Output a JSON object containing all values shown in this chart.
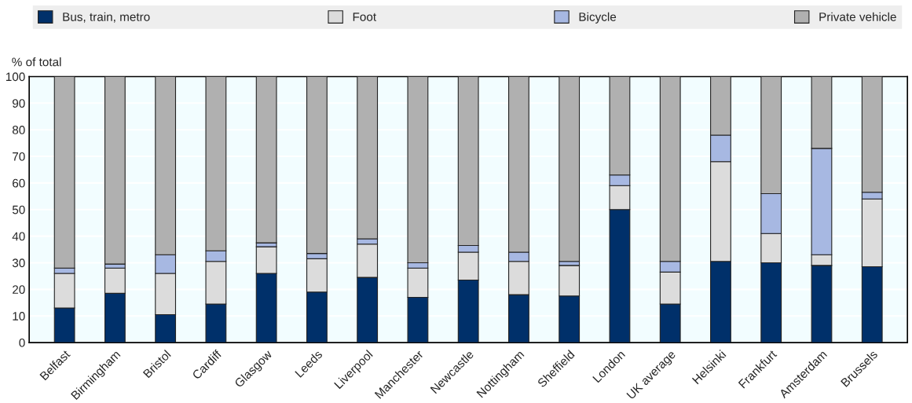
{
  "chart_data": {
    "type": "bar",
    "stacked": true,
    "ylabel": "% of total",
    "categories": [
      "Belfast",
      "Birmingham",
      "Bristol",
      "Cardiff",
      "Glasgow",
      "Leeds",
      "Liverpool",
      "Manchester",
      "Newcastle",
      "Nottingham",
      "Sheffield",
      "London",
      "UK average",
      "Helsinki",
      "Frankfurt",
      "Amsterdam",
      "Brussels"
    ],
    "series": [
      {
        "name": "Bus, train, metro",
        "color": "#00306a",
        "values": [
          13,
          18.5,
          10.5,
          14.5,
          26,
          19,
          24.5,
          17,
          23.5,
          18,
          17.5,
          50,
          14.5,
          30.5,
          30,
          29,
          28.5
        ]
      },
      {
        "name": "Foot",
        "color": "#dcdcdc",
        "values": [
          13,
          9.5,
          15.5,
          16,
          10,
          12.5,
          12.5,
          11,
          10.5,
          12.5,
          11.5,
          9,
          12,
          37.5,
          11,
          4,
          25.5
        ]
      },
      {
        "name": "Bicycle",
        "color": "#a7b8e2",
        "values": [
          2,
          1.5,
          7,
          4,
          1.5,
          2,
          2,
          2,
          2.5,
          3.5,
          1.5,
          4,
          4,
          10,
          15,
          40,
          2.5
        ]
      },
      {
        "name": "Private vehicle",
        "color": "#b0b0b0",
        "values": [
          72,
          70.5,
          67,
          65.5,
          62.5,
          66.5,
          61,
          70,
          63.5,
          66,
          69.5,
          37,
          69.5,
          22,
          44,
          27,
          43.5
        ]
      }
    ],
    "ylim": [
      0,
      100
    ],
    "yticks": [
      0,
      10,
      20,
      30,
      40,
      50,
      60,
      70,
      80,
      90,
      100
    ],
    "grid": "y",
    "legend": "top"
  }
}
